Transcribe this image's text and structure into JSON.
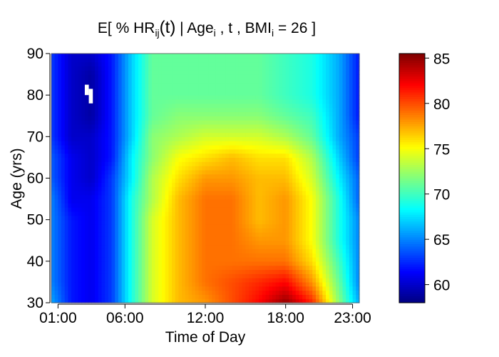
{
  "chart_data": {
    "type": "heatmap",
    "title": {
      "prefix": "E[ % HR",
      "sub1": "ij",
      "mid": "(t)",
      "sep": " | Age",
      "sub2": "i",
      "mid2": " , t , BMI",
      "sub3": "i",
      "suffix": " = 26 ]"
    },
    "xlabel": "Time of Day",
    "ylabel": "Age (yrs)",
    "xlim": [
      0.5,
      23.5
    ],
    "ylim": [
      30,
      90
    ],
    "x_ticks": [
      {
        "value": 1,
        "label": "01:00"
      },
      {
        "value": 6,
        "label": "06:00"
      },
      {
        "value": 12,
        "label": "12:00"
      },
      {
        "value": 18,
        "label": "18:00"
      },
      {
        "value": 23,
        "label": "23:00"
      }
    ],
    "y_ticks": [
      {
        "value": 30,
        "label": "30"
      },
      {
        "value": 40,
        "label": "40"
      },
      {
        "value": 50,
        "label": "50"
      },
      {
        "value": 60,
        "label": "60"
      },
      {
        "value": 70,
        "label": "70"
      },
      {
        "value": 80,
        "label": "80"
      },
      {
        "value": 90,
        "label": "90"
      }
    ],
    "colorbar": {
      "range": [
        58,
        85.5
      ],
      "ticks": [
        {
          "value": 60,
          "label": "60"
        },
        {
          "value": 65,
          "label": "65"
        },
        {
          "value": 70,
          "label": "70"
        },
        {
          "value": 75,
          "label": "75"
        },
        {
          "value": 80,
          "label": "80"
        },
        {
          "value": 85,
          "label": "85"
        }
      ],
      "colors": [
        "#00007f",
        "#0000ff",
        "#007fff",
        "#00ffff",
        "#7fff7f",
        "#ffff00",
        "#ff7f00",
        "#ff0000",
        "#7f0000"
      ]
    },
    "surface": {
      "x_nodes": [
        0.5,
        2,
        3.5,
        5,
        6.5,
        8,
        10,
        12,
        14,
        16,
        18,
        20,
        22,
        23.5
      ],
      "y_nodes": [
        30,
        35,
        40,
        45,
        50,
        55,
        60,
        65,
        70,
        75,
        80,
        85,
        90
      ],
      "values": [
        [
          66,
          62,
          61,
          63,
          69,
          74,
          77,
          78,
          80,
          82,
          85,
          81,
          72,
          66
        ],
        [
          65,
          62,
          61,
          63,
          69,
          74,
          77,
          79,
          80,
          81,
          82,
          78,
          71,
          65
        ],
        [
          65,
          62,
          61,
          63,
          69,
          74,
          77,
          79,
          79,
          79,
          79,
          76,
          70,
          65
        ],
        [
          65,
          62,
          61,
          63,
          69,
          74,
          77,
          79,
          79,
          78,
          78,
          75,
          69,
          65
        ],
        [
          65,
          62,
          61,
          63,
          69,
          74,
          77,
          79,
          79,
          77,
          78,
          75,
          69,
          65
        ],
        [
          65,
          61,
          61,
          63,
          69,
          73,
          77,
          79,
          79,
          77,
          78,
          75,
          69,
          64
        ],
        [
          64,
          61,
          60,
          63,
          68,
          73,
          76,
          78,
          78,
          77,
          77,
          74,
          68,
          64
        ],
        [
          64,
          61,
          60,
          62,
          68,
          72,
          75,
          76,
          77,
          76,
          76,
          73,
          67,
          63
        ],
        [
          63,
          60,
          60,
          62,
          67,
          72,
          73,
          74,
          74,
          74,
          73,
          71,
          66,
          63
        ],
        [
          63,
          60,
          59,
          62,
          67,
          71,
          72,
          72,
          72,
          72,
          71,
          70,
          66,
          62
        ],
        [
          63,
          60,
          59,
          62,
          67,
          71,
          71,
          71,
          71,
          71,
          70,
          69,
          66,
          62
        ],
        [
          63,
          60,
          59,
          62,
          67,
          71,
          71,
          71,
          71,
          71,
          70,
          69,
          66,
          62
        ],
        [
          63,
          60,
          60,
          62,
          67,
          71,
          71,
          71,
          71,
          71,
          70,
          69,
          66,
          62
        ]
      ],
      "missing_cells": [
        {
          "x": [
            3.0,
            3.3
          ],
          "y": [
            80.0,
            82.5
          ]
        },
        {
          "x": [
            3.3,
            3.6
          ],
          "y": [
            78.0,
            81.5
          ]
        }
      ]
    }
  }
}
